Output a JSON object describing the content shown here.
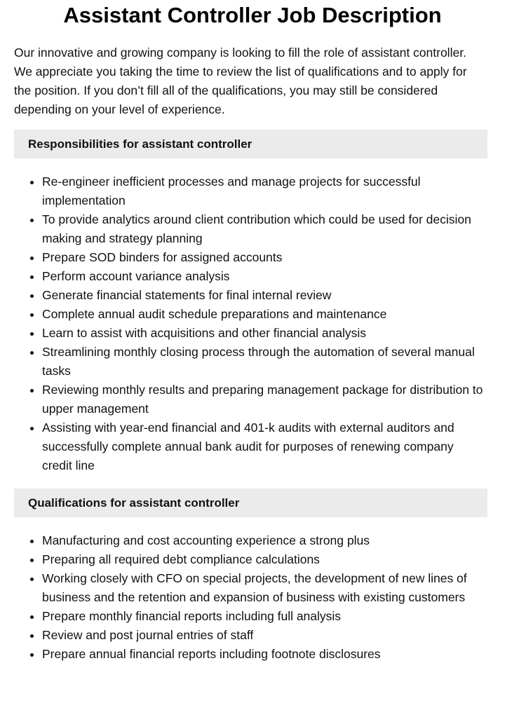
{
  "title": "Assistant Controller Job Description",
  "intro": "Our innovative and growing company is looking to fill the role of assistant controller. We appreciate you taking the time to review the list of qualifications and to apply for the position. If you don’t fill all of the qualifications, you may still be considered depending on your level of experience.",
  "responsibilities": {
    "heading": "Responsibilities for assistant controller",
    "items": [
      "Re-engineer inefficient processes and manage projects for successful implementation",
      "To provide analytics around client contribution which could be used for decision making and strategy planning",
      "Prepare SOD binders for assigned accounts",
      "Perform account variance analysis",
      "Generate financial statements for final internal review",
      "Complete annual audit schedule preparations and maintenance",
      "Learn to assist with acquisitions and other financial analysis",
      "Streamlining monthly closing process through the automation of several manual tasks",
      "Reviewing monthly results and preparing management package for distribution to upper management",
      "Assisting with year-end financial and 401-k audits with external auditors and successfully complete annual bank audit for purposes of renewing company credit line"
    ]
  },
  "qualifications": {
    "heading": "Qualifications for assistant controller",
    "items": [
      "Manufacturing and cost accounting experience a strong plus",
      "Preparing all required debt compliance calculations",
      "Working closely with CFO on special projects, the development of new lines of business and the retention and expansion of business with existing customers",
      "Prepare monthly financial reports including full analysis",
      "Review and post journal entries of staff",
      "Prepare annual financial reports including footnote disclosures"
    ]
  }
}
